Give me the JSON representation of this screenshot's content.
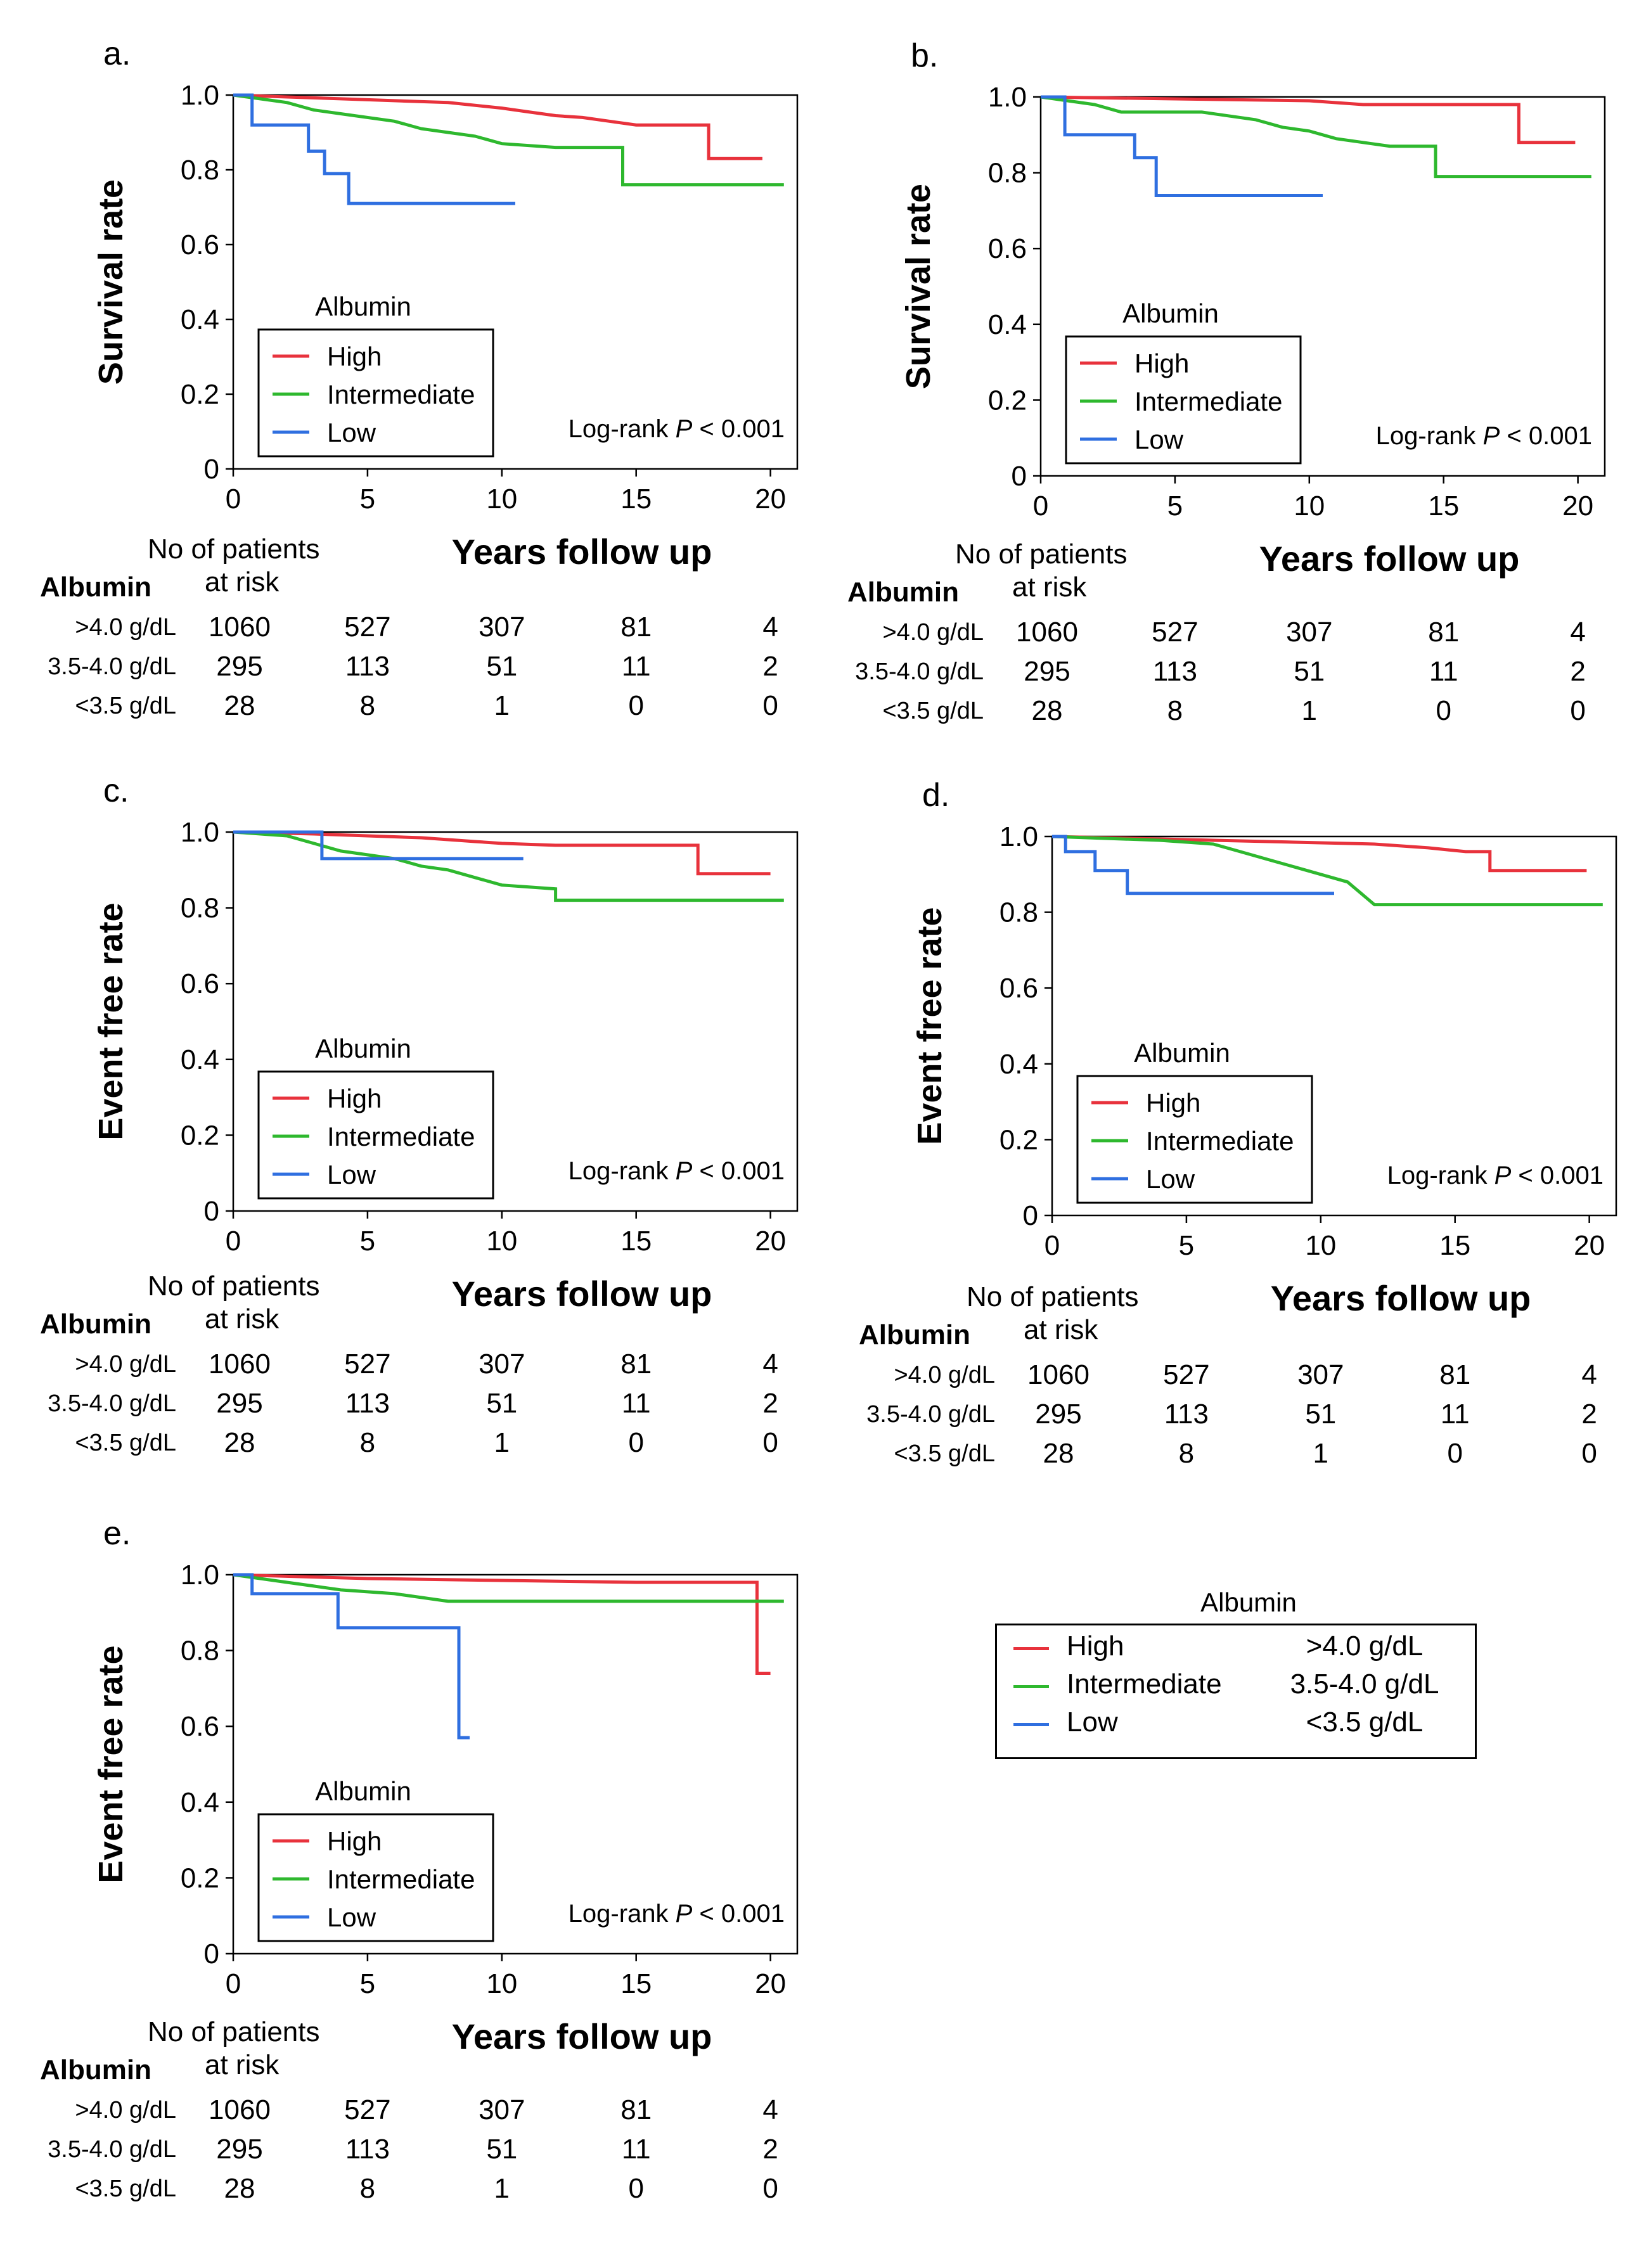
{
  "colors": {
    "High": "#e8323c",
    "Intermediate": "#2eb82e",
    "Low": "#2f6fe0"
  },
  "shared": {
    "xlabel": "Years follow up",
    "legend_title": "Albumin",
    "legend_entries": [
      "High",
      "Intermediate",
      "Low"
    ],
    "logrank_text": "Log-rank ",
    "logrank_p": "P",
    "logrank_value": " < 0.001",
    "risk_title_1": "No of patients",
    "risk_title_2": "at risk",
    "risk_group_label": "Albumin",
    "risk_rows": [
      {
        "label": ">4.0 g/dL",
        "values": [
          "1060",
          "527",
          "307",
          "81",
          "4"
        ]
      },
      {
        "label": "3.5-4.0 g/dL",
        "values": [
          "295",
          "113",
          "51",
          "11",
          "2"
        ]
      },
      {
        "label": "<3.5 g/dL",
        "values": [
          "28",
          "8",
          "1",
          "0",
          "0"
        ]
      }
    ]
  },
  "global_legend": {
    "title": "Albumin",
    "entries": [
      {
        "name": "High",
        "range": ">4.0 g/dL",
        "color": "#e8323c"
      },
      {
        "name": "Intermediate",
        "range": "3.5-4.0 g/dL",
        "color": "#2eb82e"
      },
      {
        "name": "Low",
        "range": "<3.5 g/dL",
        "color": "#2f6fe0"
      }
    ]
  },
  "chart_data": [
    {
      "panel": "a.",
      "type": "line",
      "ylabel": "Survival rate",
      "xlabel": "Years follow up",
      "xlim": [
        0,
        21
      ],
      "ylim": [
        0,
        1.0
      ],
      "xticks": [
        "0",
        "5",
        "10",
        "15",
        "20"
      ],
      "yticks": [
        "0",
        "0.2",
        "0.4",
        "0.6",
        "0.8",
        "1.0"
      ],
      "series": [
        {
          "name": "High",
          "x": [
            0,
            2,
            4,
            6,
            8,
            10,
            11,
            12,
            13,
            14,
            15,
            17.7,
            17.7,
            19.7
          ],
          "y": [
            1.0,
            0.995,
            0.99,
            0.985,
            0.98,
            0.965,
            0.955,
            0.945,
            0.94,
            0.93,
            0.92,
            0.92,
            0.83,
            0.83
          ]
        },
        {
          "name": "Intermediate",
          "x": [
            0,
            1,
            2,
            3,
            4,
            6,
            7,
            8,
            9,
            10,
            12,
            14.5,
            14.5,
            20.5
          ],
          "y": [
            1.0,
            0.99,
            0.98,
            0.96,
            0.95,
            0.93,
            0.91,
            0.9,
            0.89,
            0.87,
            0.86,
            0.86,
            0.76,
            0.76
          ]
        },
        {
          "name": "Low",
          "x": [
            0,
            0.7,
            0.7,
            2.8,
            2.8,
            3.4,
            3.4,
            4.3,
            4.3,
            10.5
          ],
          "y": [
            1.0,
            1.0,
            0.92,
            0.92,
            0.85,
            0.85,
            0.79,
            0.79,
            0.71,
            0.71
          ]
        }
      ]
    },
    {
      "panel": "b.",
      "type": "line",
      "ylabel": "Survival rate",
      "xlabel": "Years follow up",
      "xlim": [
        0,
        21
      ],
      "ylim": [
        0,
        1.0
      ],
      "xticks": [
        "0",
        "5",
        "10",
        "15",
        "20"
      ],
      "yticks": [
        "0",
        "0.2",
        "0.4",
        "0.6",
        "0.8",
        "1.0"
      ],
      "series": [
        {
          "name": "High",
          "x": [
            0,
            5,
            10,
            12,
            17.8,
            17.8,
            19.9
          ],
          "y": [
            1.0,
            0.995,
            0.99,
            0.98,
            0.98,
            0.88,
            0.88
          ]
        },
        {
          "name": "Intermediate",
          "x": [
            0,
            1,
            2,
            3,
            6,
            8,
            9,
            10,
            11,
            12,
            13,
            14.7,
            14.7,
            20.5
          ],
          "y": [
            1.0,
            0.99,
            0.98,
            0.96,
            0.96,
            0.94,
            0.92,
            0.91,
            0.89,
            0.88,
            0.87,
            0.87,
            0.79,
            0.79
          ]
        },
        {
          "name": "Low",
          "x": [
            0,
            0.9,
            0.9,
            3.5,
            3.5,
            4.3,
            4.3,
            10.5
          ],
          "y": [
            1.0,
            1.0,
            0.9,
            0.9,
            0.84,
            0.84,
            0.74,
            0.74
          ]
        }
      ]
    },
    {
      "panel": "c.",
      "type": "line",
      "ylabel": "Event free rate",
      "xlabel": "Years follow up",
      "xlim": [
        0,
        21
      ],
      "ylim": [
        0,
        1.0
      ],
      "xticks": [
        "0",
        "5",
        "10",
        "15",
        "20"
      ],
      "yticks": [
        "0",
        "0.2",
        "0.4",
        "0.6",
        "0.8",
        "1.0"
      ],
      "series": [
        {
          "name": "High",
          "x": [
            0,
            3,
            5,
            7,
            9,
            10,
            12,
            17.3,
            17.3,
            20.0
          ],
          "y": [
            1.0,
            0.995,
            0.99,
            0.985,
            0.975,
            0.97,
            0.965,
            0.965,
            0.89,
            0.89
          ]
        },
        {
          "name": "Intermediate",
          "x": [
            0,
            2,
            3,
            4,
            6,
            7,
            8,
            9,
            10,
            12,
            12,
            20.5
          ],
          "y": [
            1.0,
            0.99,
            0.97,
            0.95,
            0.93,
            0.91,
            0.9,
            0.88,
            0.86,
            0.85,
            0.82,
            0.82
          ]
        },
        {
          "name": "Low",
          "x": [
            0,
            3.3,
            3.3,
            5.7,
            5.7,
            10.8
          ],
          "y": [
            1.0,
            1.0,
            0.93,
            0.93,
            0.93,
            0.93
          ]
        }
      ]
    },
    {
      "panel": "d.",
      "type": "line",
      "ylabel": "Event free rate",
      "xlabel": "Years follow up",
      "xlim": [
        0,
        21
      ],
      "ylim": [
        0,
        1.0
      ],
      "xticks": [
        "0",
        "5",
        "10",
        "15",
        "20"
      ],
      "yticks": [
        "0",
        "0.2",
        "0.4",
        "0.6",
        "0.8",
        "1.0"
      ],
      "series": [
        {
          "name": "High",
          "x": [
            0,
            3,
            6,
            9,
            12,
            14,
            15.4,
            16.3,
            16.3,
            19.9
          ],
          "y": [
            1.0,
            0.995,
            0.99,
            0.985,
            0.98,
            0.97,
            0.96,
            0.96,
            0.91,
            0.91
          ]
        },
        {
          "name": "Intermediate",
          "x": [
            0,
            4,
            6,
            7,
            8,
            9,
            10,
            11,
            11.5,
            12,
            20.5
          ],
          "y": [
            1.0,
            0.99,
            0.98,
            0.96,
            0.94,
            0.92,
            0.9,
            0.88,
            0.85,
            0.82,
            0.82
          ]
        },
        {
          "name": "Low",
          "x": [
            0,
            0.5,
            0.5,
            1.6,
            1.6,
            2.8,
            2.8,
            10.5
          ],
          "y": [
            1.0,
            1.0,
            0.96,
            0.96,
            0.91,
            0.91,
            0.85,
            0.85
          ]
        }
      ]
    },
    {
      "panel": "e.",
      "type": "line",
      "ylabel": "Event free rate",
      "xlabel": "Years follow up",
      "xlim": [
        0,
        21
      ],
      "ylim": [
        0,
        1.0
      ],
      "xticks": [
        "0",
        "5",
        "10",
        "15",
        "20"
      ],
      "yticks": [
        "0",
        "0.2",
        "0.4",
        "0.6",
        "0.8",
        "1.0"
      ],
      "series": [
        {
          "name": "High",
          "x": [
            0,
            5,
            10,
            15,
            19.5,
            19.5,
            20.0
          ],
          "y": [
            1.0,
            0.99,
            0.985,
            0.98,
            0.98,
            0.74,
            0.74
          ]
        },
        {
          "name": "Intermediate",
          "x": [
            0,
            1,
            2,
            3,
            4,
            6,
            7,
            8,
            20.5
          ],
          "y": [
            1.0,
            0.99,
            0.98,
            0.97,
            0.96,
            0.95,
            0.94,
            0.93,
            0.93
          ]
        },
        {
          "name": "Low",
          "x": [
            0,
            0.7,
            0.7,
            3.9,
            3.9,
            8.4,
            8.4,
            8.8
          ],
          "y": [
            1.0,
            1.0,
            0.95,
            0.95,
            0.86,
            0.86,
            0.57,
            0.57
          ]
        }
      ]
    }
  ]
}
